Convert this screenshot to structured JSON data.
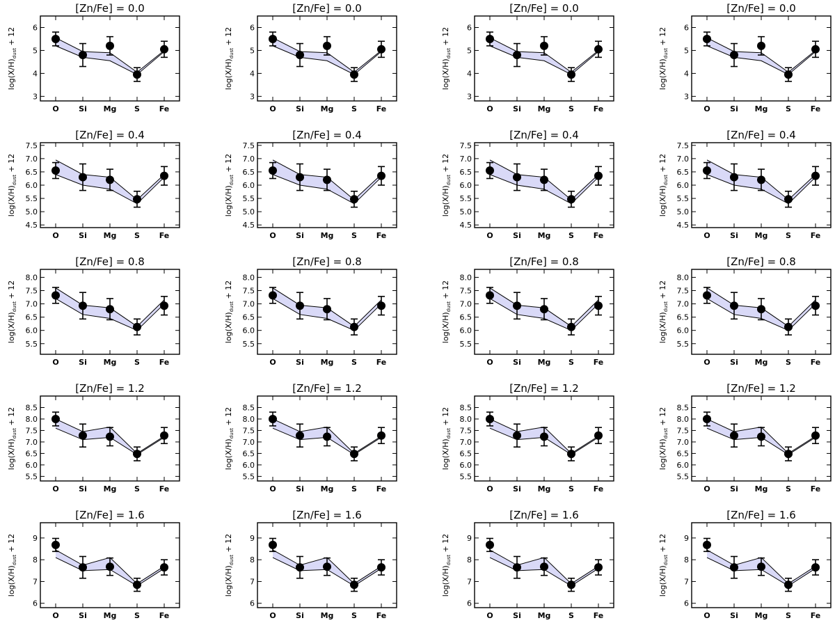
{
  "chart_data": [
    {
      "type": "line",
      "row_title": "[Zn/Fe] = 0.0",
      "ylabel": "log(X/H)dust + 12",
      "ylabel_main": "log(X/H)",
      "ylabel_sub": "dust",
      "ylabel_tail": " + 12",
      "categories": [
        "O",
        "Si",
        "Mg",
        "S",
        "Fe"
      ],
      "ylim": [
        2.8,
        6.5
      ],
      "yticks": [
        "3",
        "4",
        "5",
        "6"
      ],
      "yticks_values": [
        3,
        4,
        5,
        6
      ],
      "observed": [
        5.5,
        4.8,
        5.2,
        3.95,
        5.05
      ],
      "error": [
        0.3,
        0.5,
        0.4,
        0.3,
        0.35
      ],
      "model_upper": [
        5.55,
        4.95,
        4.9,
        4.05,
        5.0
      ],
      "model_lower": [
        5.2,
        4.7,
        4.55,
        3.95,
        4.95
      ]
    },
    {
      "type": "line",
      "row_title": "[Zn/Fe] = 0.4",
      "ylabel": "log(X/H)dust + 12",
      "ylabel_main": "log(X/H)",
      "ylabel_sub": "dust",
      "ylabel_tail": " + 12",
      "categories": [
        "O",
        "Si",
        "Mg",
        "S",
        "Fe"
      ],
      "ylim": [
        4.4,
        7.6
      ],
      "yticks": [
        "4.5",
        "5.0",
        "5.5",
        "6.0",
        "6.5",
        "7.0",
        "7.5"
      ],
      "yticks_values": [
        4.5,
        5.0,
        5.5,
        6.0,
        6.5,
        7.0,
        7.5
      ],
      "observed": [
        6.55,
        6.3,
        6.2,
        5.47,
        6.35
      ],
      "error": [
        0.3,
        0.5,
        0.4,
        0.3,
        0.35
      ],
      "model_upper": [
        6.95,
        6.4,
        6.3,
        5.45,
        6.4
      ],
      "model_lower": [
        6.4,
        6.0,
        5.85,
        5.3,
        6.3
      ]
    },
    {
      "type": "line",
      "row_title": "[Zn/Fe] = 0.8",
      "ylabel": "log(X/H)dust + 12",
      "ylabel_main": "log(X/H)",
      "ylabel_sub": "dust",
      "ylabel_tail": " + 12",
      "categories": [
        "O",
        "Si",
        "Mg",
        "S",
        "Fe"
      ],
      "ylim": [
        5.1,
        8.3
      ],
      "yticks": [
        "5.5",
        "6.0",
        "6.5",
        "7.0",
        "7.5",
        "8.0"
      ],
      "yticks_values": [
        5.5,
        6.0,
        6.5,
        7.0,
        7.5,
        8.0
      ],
      "observed": [
        7.32,
        6.93,
        6.8,
        6.13,
        6.93
      ],
      "error": [
        0.3,
        0.5,
        0.4,
        0.3,
        0.35
      ],
      "model_upper": [
        7.6,
        6.95,
        6.85,
        6.15,
        7.15
      ],
      "model_lower": [
        7.2,
        6.6,
        6.45,
        6.0,
        7.0
      ]
    },
    {
      "type": "line",
      "row_title": "[Zn/Fe] = 1.2",
      "ylabel": "log(X/H)dust + 12",
      "ylabel_main": "log(X/H)",
      "ylabel_sub": "dust",
      "ylabel_tail": " + 12",
      "categories": [
        "O",
        "Si",
        "Mg",
        "S",
        "Fe"
      ],
      "ylim": [
        5.3,
        9.0
      ],
      "yticks": [
        "5.5",
        "6.0",
        "6.5",
        "7.0",
        "7.5",
        "8.0",
        "8.5"
      ],
      "yticks_values": [
        5.5,
        6.0,
        6.5,
        7.0,
        7.5,
        8.0,
        8.5
      ],
      "observed": [
        8.0,
        7.28,
        7.23,
        6.48,
        7.28
      ],
      "error": [
        0.3,
        0.5,
        0.4,
        0.3,
        0.35
      ],
      "model_upper": [
        8.0,
        7.45,
        7.65,
        6.5,
        7.25
      ],
      "model_lower": [
        7.6,
        7.1,
        7.2,
        6.45,
        7.2
      ]
    },
    {
      "type": "line",
      "row_title": "[Zn/Fe] = 1.6",
      "ylabel": "log(X/H)dust + 12",
      "ylabel_main": "log(X/H)",
      "ylabel_sub": "dust",
      "ylabel_tail": " + 12",
      "categories": [
        "O",
        "Si",
        "Mg",
        "S",
        "Fe"
      ],
      "ylim": [
        5.8,
        9.7
      ],
      "yticks": [
        "6",
        "7",
        "8",
        "9"
      ],
      "yticks_values": [
        6,
        7,
        8,
        9
      ],
      "observed": [
        8.68,
        7.65,
        7.68,
        6.85,
        7.65
      ],
      "error": [
        0.3,
        0.5,
        0.4,
        0.3,
        0.35
      ],
      "model_upper": [
        8.45,
        7.75,
        8.1,
        6.9,
        7.7
      ],
      "model_lower": [
        8.1,
        7.5,
        7.55,
        6.8,
        7.6
      ]
    }
  ],
  "columns": 4,
  "colors": {
    "band_fill": "#d9d9f7",
    "line": "#000000",
    "marker": "#000000"
  }
}
